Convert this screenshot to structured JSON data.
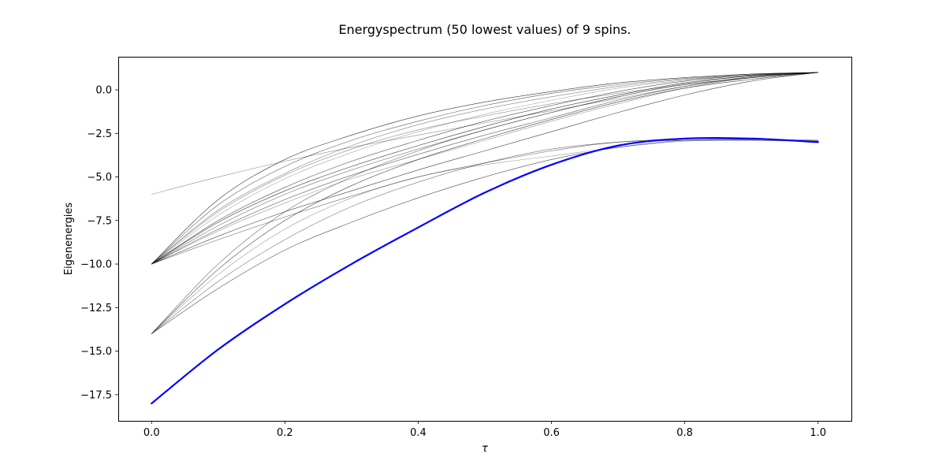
{
  "chart_data": {
    "type": "line",
    "title": "Energyspectrum (50 lowest values) of 9 spins.",
    "xlabel": "τ",
    "ylabel": "Eigenenergies",
    "xlim": [
      -0.05,
      1.05
    ],
    "ylim": [
      -19.0,
      1.9
    ],
    "xticks": [
      0.0,
      0.2,
      0.4,
      0.6,
      0.8,
      1.0
    ],
    "xtick_labels": [
      "0.0",
      "0.2",
      "0.4",
      "0.6",
      "0.8",
      "1.0"
    ],
    "yticks": [
      0.0,
      -2.5,
      -5.0,
      -7.5,
      -10.0,
      -12.5,
      -15.0,
      -17.5
    ],
    "ytick_labels": [
      "0.0",
      "−2.5",
      "−5.0",
      "−7.5",
      "−10.0",
      "−12.5",
      "−15.0",
      "−17.5"
    ],
    "grid": false,
    "colors": {
      "ground_state": "#0000ff",
      "excited_states": "#000000"
    },
    "x": [
      0.0,
      0.1,
      0.2,
      0.3,
      0.4,
      0.5,
      0.6,
      0.7,
      0.8,
      0.9,
      1.0
    ],
    "series": [
      {
        "role": "ground",
        "values": [
          -18.0,
          -14.9,
          -12.3,
          -10.0,
          -7.9,
          -5.9,
          -4.3,
          -3.2,
          -2.8,
          -2.8,
          -3.0
        ]
      },
      {
        "role": "excited",
        "values": [
          -14.0,
          -11.4,
          -9.2,
          -7.6,
          -6.2,
          -5.0,
          -4.0,
          -3.3,
          -2.9,
          -2.85,
          -2.9
        ]
      },
      {
        "role": "excited",
        "values": [
          -14.0,
          -11.0,
          -8.6,
          -6.7,
          -5.3,
          -4.2,
          -3.4,
          -3.0,
          -2.8,
          -2.85,
          -2.9
        ]
      },
      {
        "role": "excited",
        "values": [
          -14.0,
          -10.6,
          -8.0,
          -6.2,
          -5.0,
          -4.3,
          -3.8,
          -3.3,
          -2.95,
          -2.9,
          -2.95
        ]
      },
      {
        "role": "excited",
        "values": [
          -14.0,
          -10.3,
          -7.5,
          -5.5,
          -4.0,
          -2.8,
          -1.7,
          -0.7,
          0.1,
          0.6,
          1.0
        ]
      },
      {
        "role": "excited",
        "values": [
          -14.0,
          -10.0,
          -7.0,
          -5.0,
          -3.5,
          -2.3,
          -1.3,
          -0.4,
          0.3,
          0.7,
          1.0
        ]
      },
      {
        "role": "excited",
        "values": [
          -6.0,
          -5.0,
          -4.1,
          -3.3,
          -2.6,
          -1.9,
          -1.2,
          -0.5,
          0.2,
          0.7,
          1.0
        ]
      },
      {
        "role": "excited",
        "values": [
          -10.0,
          -6.3,
          -4.0,
          -2.6,
          -1.5,
          -0.7,
          -0.1,
          0.4,
          0.7,
          0.9,
          1.0
        ]
      },
      {
        "role": "excited",
        "values": [
          -10.0,
          -6.6,
          -4.4,
          -2.9,
          -1.8,
          -0.9,
          -0.2,
          0.3,
          0.65,
          0.9,
          1.0
        ]
      },
      {
        "role": "excited",
        "values": [
          -10.0,
          -6.9,
          -4.8,
          -3.2,
          -2.0,
          -1.1,
          -0.4,
          0.2,
          0.6,
          0.85,
          1.0
        ]
      },
      {
        "role": "excited",
        "values": [
          -10.0,
          -7.2,
          -5.1,
          -3.6,
          -2.4,
          -1.4,
          -0.6,
          0.1,
          0.55,
          0.85,
          1.0
        ]
      },
      {
        "role": "excited",
        "values": [
          -10.0,
          -7.5,
          -5.6,
          -4.1,
          -2.9,
          -1.8,
          -0.9,
          -0.1,
          0.5,
          0.85,
          1.0
        ]
      },
      {
        "role": "excited",
        "values": [
          -10.0,
          -7.8,
          -6.0,
          -4.6,
          -3.4,
          -2.3,
          -1.3,
          -0.4,
          0.35,
          0.8,
          1.0
        ]
      },
      {
        "role": "excited",
        "values": [
          -10.0,
          -8.1,
          -6.5,
          -5.1,
          -4.0,
          -2.9,
          -1.8,
          -0.8,
          0.1,
          0.7,
          1.0
        ]
      },
      {
        "role": "excited",
        "values": [
          -10.0,
          -8.4,
          -7.0,
          -5.8,
          -4.6,
          -3.5,
          -2.4,
          -1.3,
          -0.3,
          0.5,
          1.0
        ]
      },
      {
        "role": "excited",
        "values": [
          -10.0,
          -8.6,
          -7.3,
          -6.1,
          -5.0,
          -4.2,
          -3.5,
          -3.0,
          -2.9,
          -2.9,
          -2.95
        ]
      },
      {
        "role": "excited",
        "values": [
          -10.0,
          -7.0,
          -4.9,
          -3.4,
          -2.3,
          -1.5,
          -0.8,
          -0.2,
          0.3,
          0.7,
          1.0
        ]
      },
      {
        "role": "excited",
        "values": [
          -10.0,
          -7.6,
          -5.8,
          -4.4,
          -3.2,
          -2.1,
          -1.1,
          -0.3,
          0.4,
          0.8,
          1.0
        ]
      },
      {
        "role": "excited",
        "values": [
          -10.0,
          -8.0,
          -6.3,
          -4.9,
          -3.7,
          -2.6,
          -1.6,
          -0.6,
          0.2,
          0.75,
          1.0
        ]
      }
    ]
  }
}
